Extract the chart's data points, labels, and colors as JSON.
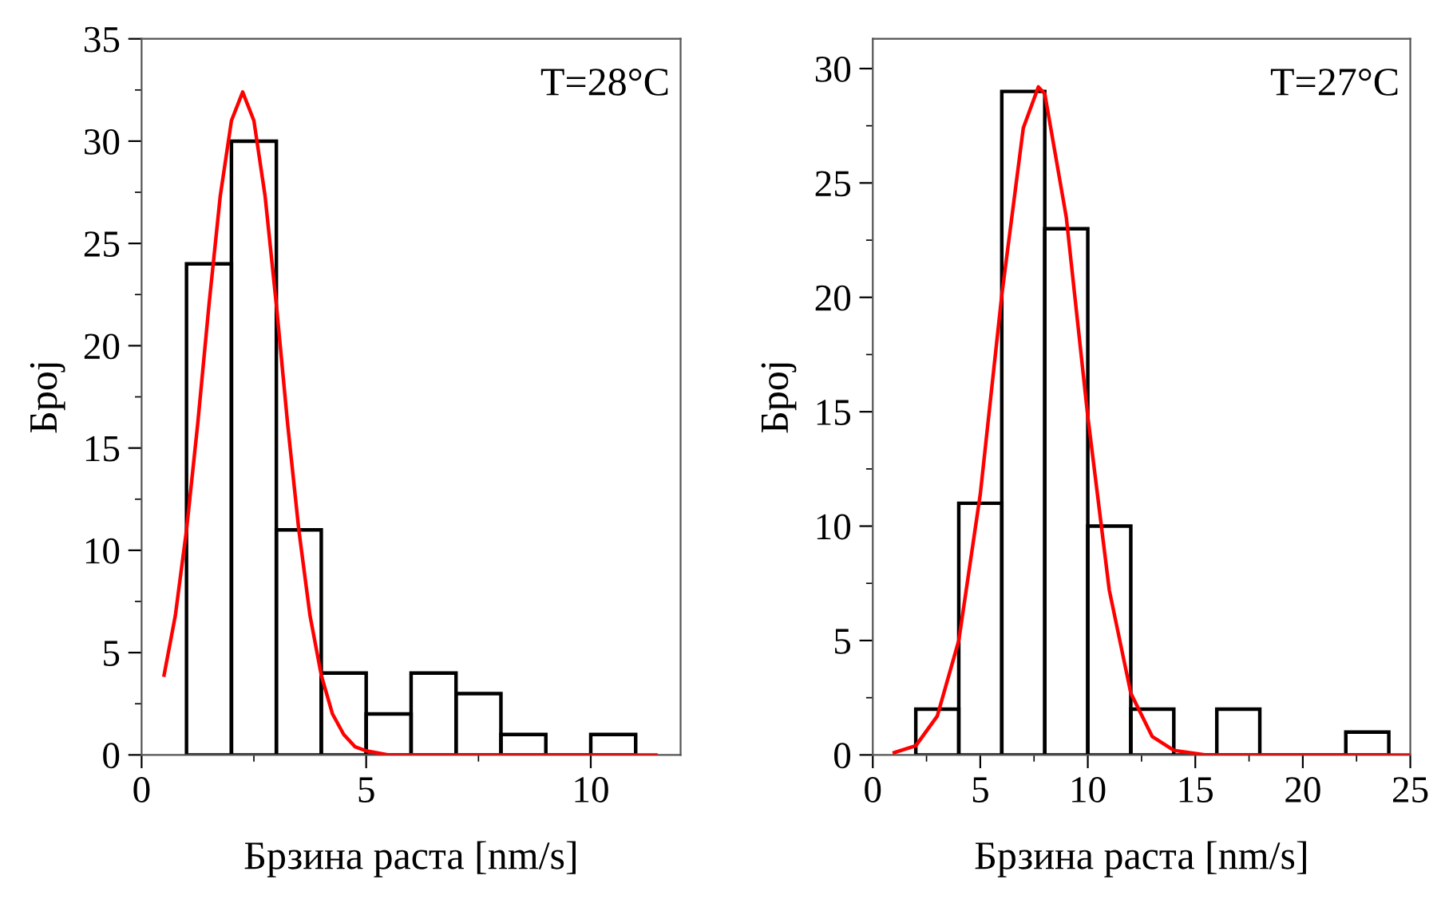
{
  "chart_data": [
    {
      "type": "histogram",
      "xlabel": "Брзина раста [nm/s]",
      "ylabel": "Број",
      "annotations": [
        "T=28°C"
      ],
      "bins": [
        1,
        2,
        3,
        4,
        5,
        6,
        7,
        8,
        9,
        10,
        11
      ],
      "xlim": [
        0,
        12
      ],
      "ylim": [
        0,
        35
      ],
      "xticks": [
        0,
        5,
        10
      ],
      "yticks": [
        0,
        5,
        10,
        15,
        20,
        25,
        30,
        35
      ],
      "grid": false,
      "legend": false,
      "series": [
        {
          "color": "#000000",
          "values": [
            24,
            30,
            11,
            4,
            2,
            4,
            3,
            1,
            0,
            1
          ]
        },
        {
          "type": "line",
          "color": "#ff0000",
          "x": [
            0.5,
            0.75,
            1.0,
            1.25,
            1.5,
            1.75,
            2.0,
            2.25,
            2.5,
            2.75,
            3.0,
            3.25,
            3.5,
            3.75,
            4.0,
            4.25,
            4.5,
            4.75,
            5.0,
            5.5,
            11.45
          ],
          "values": [
            3.9,
            6.8,
            11.0,
            16.2,
            22.0,
            27.3,
            31.0,
            32.4,
            31.0,
            27.3,
            22.0,
            16.2,
            11.0,
            6.8,
            3.9,
            2.0,
            1.0,
            0.4,
            0.2,
            0,
            0
          ]
        }
      ]
    },
    {
      "type": "histogram",
      "xlabel": "Брзина раста [nm/s]",
      "ylabel": "Број",
      "annotations": [
        "T=27°C"
      ],
      "bins": [
        2,
        4,
        6,
        8,
        10,
        12,
        14,
        16,
        18,
        20,
        22,
        24
      ],
      "xlim": [
        0,
        25
      ],
      "ylim": [
        0,
        31.3
      ],
      "xticks": [
        0,
        5,
        10,
        15,
        20,
        25
      ],
      "yticks": [
        0,
        5,
        10,
        15,
        20,
        25,
        30
      ],
      "grid": false,
      "legend": false,
      "series": [
        {
          "color": "#000000",
          "values": [
            2,
            11,
            29,
            23,
            10,
            2,
            0,
            2,
            0,
            0,
            1
          ]
        },
        {
          "type": "line",
          "color": "#ff0000",
          "x": [
            1,
            2,
            3,
            4,
            5,
            6,
            7,
            7.7,
            8,
            9,
            10,
            11,
            12,
            13,
            14,
            15.5,
            25
          ],
          "values": [
            0.1,
            0.4,
            1.7,
            5.0,
            11.4,
            20.1,
            27.4,
            29.2,
            28.9,
            23.5,
            14.8,
            7.2,
            2.7,
            0.8,
            0.2,
            0,
            0
          ]
        }
      ]
    }
  ]
}
